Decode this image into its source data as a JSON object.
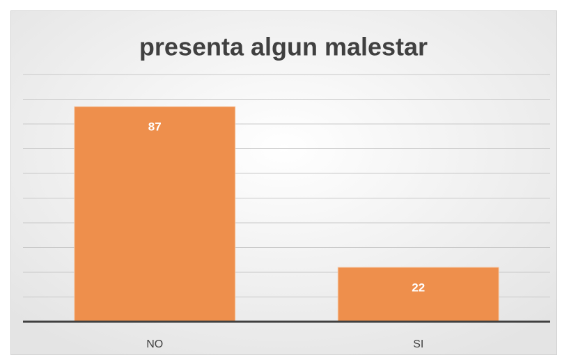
{
  "chart_data": {
    "type": "bar",
    "title": "presenta algun malestar",
    "categories": [
      "NO",
      "SI"
    ],
    "values": [
      87,
      22
    ],
    "color": "#ee8f4c",
    "ylim": [
      0,
      100
    ],
    "yticks": [
      0,
      10,
      20,
      30,
      40,
      50,
      60,
      70,
      80,
      90,
      100
    ],
    "grid": true
  }
}
